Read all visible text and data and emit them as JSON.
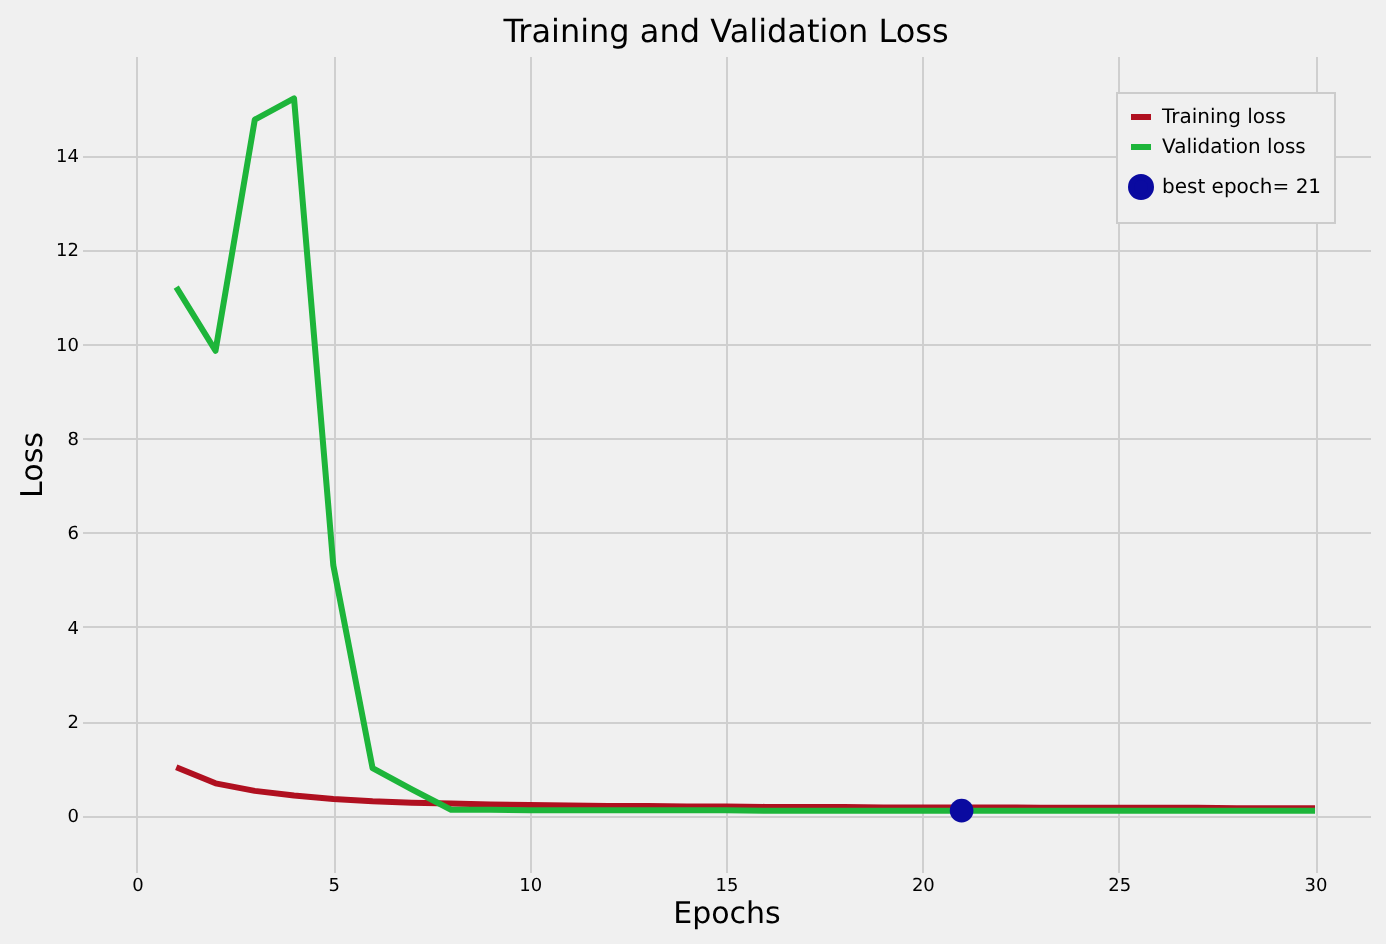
{
  "chart_data": {
    "type": "line",
    "title": "Training and Validation Loss",
    "xlabel": "Epochs",
    "ylabel": "Loss",
    "x": [
      1,
      2,
      3,
      4,
      5,
      6,
      7,
      8,
      9,
      10,
      11,
      12,
      13,
      14,
      15,
      16,
      17,
      18,
      19,
      20,
      21,
      22,
      23,
      24,
      25,
      26,
      27,
      28,
      29,
      30
    ],
    "series": [
      {
        "name": "Training loss",
        "color": "#b01020",
        "values": [
          1.02,
          0.68,
          0.52,
          0.42,
          0.35,
          0.3,
          0.27,
          0.25,
          0.23,
          0.22,
          0.21,
          0.2,
          0.2,
          0.19,
          0.19,
          0.18,
          0.18,
          0.18,
          0.17,
          0.17,
          0.17,
          0.17,
          0.16,
          0.16,
          0.16,
          0.16,
          0.16,
          0.15,
          0.15,
          0.15
        ]
      },
      {
        "name": "Validation loss",
        "color": "#1db53a",
        "values": [
          11.2,
          9.85,
          14.75,
          15.2,
          5.3,
          1.0,
          0.55,
          0.12,
          0.12,
          0.11,
          0.11,
          0.11,
          0.11,
          0.11,
          0.11,
          0.1,
          0.1,
          0.1,
          0.1,
          0.1,
          0.1,
          0.1,
          0.1,
          0.1,
          0.1,
          0.1,
          0.1,
          0.1,
          0.1,
          0.1
        ]
      },
      {
        "name": "best epoch= 21",
        "type": "scatter",
        "marker": "circle",
        "color": "#0a0aa0",
        "x": [
          21
        ],
        "values": [
          0.1
        ]
      }
    ],
    "xlim": [
      -1.4,
      31.4
    ],
    "xticks": [
      0,
      5,
      10,
      15,
      20,
      25,
      30
    ],
    "ylim": [
      -1.2,
      16.1
    ],
    "yticks": [
      0,
      2,
      4,
      6,
      8,
      10,
      12,
      14
    ],
    "grid": true,
    "legend": "top right"
  }
}
